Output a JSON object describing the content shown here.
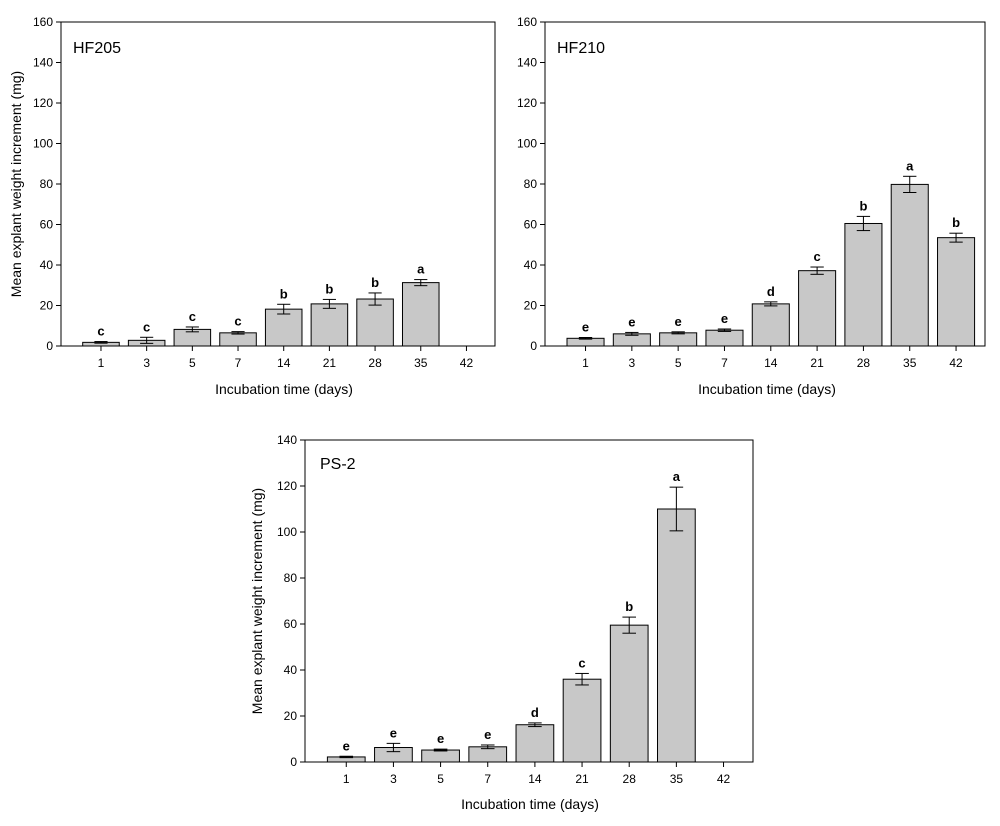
{
  "chart_data": [
    {
      "type": "bar",
      "title": "HF205",
      "xlabel": "Incubation time (days)",
      "ylabel": "Mean explant weight increment (mg)",
      "categories": [
        "1",
        "3",
        "5",
        "7",
        "14",
        "21",
        "28",
        "35",
        "42"
      ],
      "values": [
        1.8,
        2.8,
        8.2,
        6.5,
        18.2,
        20.8,
        23.2,
        31.3,
        null
      ],
      "errors": [
        0.4,
        1.5,
        1.2,
        0.6,
        2.4,
        2.2,
        3.0,
        1.5,
        null
      ],
      "letters": [
        "c",
        "c",
        "c",
        "c",
        "b",
        "b",
        "b",
        "a",
        ""
      ],
      "ylim": [
        0,
        160
      ],
      "yticks": [
        0,
        20,
        40,
        60,
        80,
        100,
        120,
        140,
        160
      ],
      "grid": false,
      "bar_color": "#c8c8c8"
    },
    {
      "type": "bar",
      "title": "HF210",
      "xlabel": "Incubation time (days)",
      "ylabel": "",
      "categories": [
        "1",
        "3",
        "5",
        "7",
        "14",
        "21",
        "28",
        "35",
        "42"
      ],
      "values": [
        3.8,
        6.0,
        6.5,
        7.8,
        20.8,
        37.2,
        60.5,
        79.8,
        53.5
      ],
      "errors": [
        0.4,
        0.7,
        0.5,
        0.6,
        1.0,
        1.8,
        3.5,
        4.0,
        2.2
      ],
      "letters": [
        "e",
        "e",
        "e",
        "e",
        "d",
        "c",
        "b",
        "a",
        "b"
      ],
      "ylim": [
        0,
        160
      ],
      "yticks": [
        0,
        20,
        40,
        60,
        80,
        100,
        120,
        140,
        160
      ],
      "grid": false,
      "bar_color": "#c8c8c8"
    },
    {
      "type": "bar",
      "title": "PS-2",
      "xlabel": "Incubation time (days)",
      "ylabel": "Mean explant weight increment (mg)",
      "categories": [
        "1",
        "3",
        "5",
        "7",
        "14",
        "21",
        "28",
        "35",
        "42"
      ],
      "values": [
        2.2,
        6.3,
        5.2,
        6.6,
        16.2,
        36.0,
        59.5,
        110.0,
        null
      ],
      "errors": [
        0.3,
        1.8,
        0.4,
        0.8,
        0.8,
        2.5,
        3.5,
        9.5,
        null
      ],
      "letters": [
        "e",
        "e",
        "e",
        "e",
        "d",
        "c",
        "b",
        "a",
        ""
      ],
      "ylim": [
        0,
        140
      ],
      "yticks": [
        0,
        20,
        40,
        60,
        80,
        100,
        120,
        140
      ],
      "grid": false,
      "bar_color": "#c8c8c8"
    }
  ]
}
